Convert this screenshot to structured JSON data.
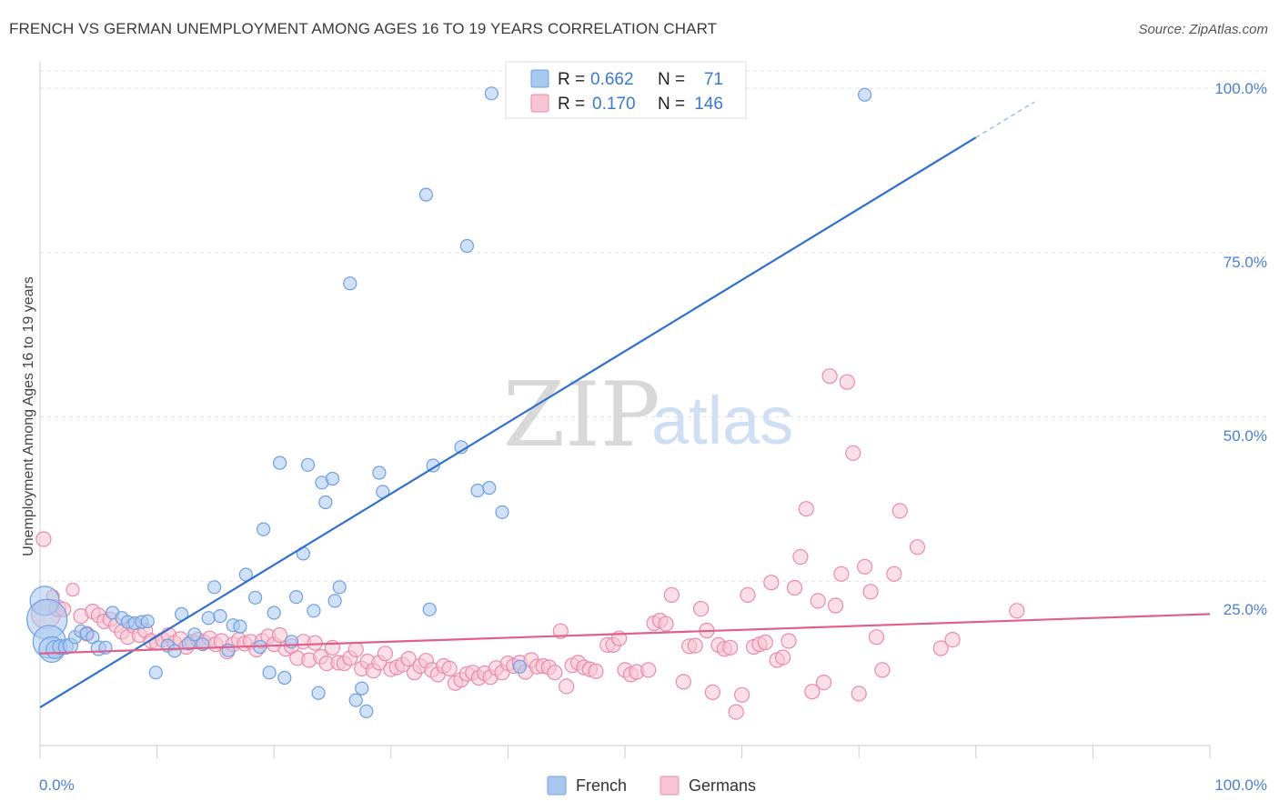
{
  "title": "FRENCH VS GERMAN UNEMPLOYMENT AMONG AGES 16 TO 19 YEARS CORRELATION CHART",
  "source": "Source: ZipAtlas.com",
  "watermark": {
    "zip": "ZIP",
    "atlas": "atlas"
  },
  "colors": {
    "french_fill": "#a9c8f0",
    "french_stroke": "#6f9fe0",
    "french_line": "#2f6fd0",
    "german_fill": "#f7c4d4",
    "german_stroke": "#ea8aaa",
    "german_line": "#e0608a",
    "grid": "#e3e3e3",
    "axis_label": "#4a7fd4"
  },
  "legend": {
    "rows": [
      {
        "r_label": "R =",
        "r_value": "0.662",
        "n_label": "N =",
        "n_value": "71"
      },
      {
        "r_label": "R =",
        "r_value": "0.170",
        "n_label": "N =",
        "n_value": "146"
      }
    ]
  },
  "bottom_legend": {
    "french": "French",
    "germans": "Germans"
  },
  "chart_data": {
    "type": "scatter",
    "title": "FRENCH VS GERMAN UNEMPLOYMENT AMONG AGES 16 TO 19 YEARS CORRELATION CHART",
    "xlabel": "",
    "ylabel": "Unemployment Among Ages 16 to 19 years",
    "xlim": [
      0,
      100
    ],
    "ylim": [
      0,
      100
    ],
    "x_tick_labels": [
      "0.0%",
      "100.0%"
    ],
    "y_tick_labels": [
      "25.0%",
      "50.0%",
      "75.0%",
      "100.0%"
    ],
    "y_ticks": [
      25,
      50,
      75,
      100
    ],
    "grid": true,
    "legend_position": "top-center",
    "series": [
      {
        "name": "French",
        "r": 0.662,
        "n": 71,
        "trend": {
          "x0": 0,
          "y0": 5.8,
          "x1": 80,
          "y1": 92.5,
          "dash_to_x": 85,
          "dash_to_y": 97.9
        },
        "points": [
          [
            0.4,
            22.0,
            16
          ],
          [
            0.6,
            19.2,
            22
          ],
          [
            0.8,
            15.8,
            18
          ],
          [
            1.0,
            14.6,
            14
          ],
          [
            1.3,
            14.6,
            10
          ],
          [
            1.7,
            15.0,
            8
          ],
          [
            2.2,
            15.0,
            8
          ],
          [
            2.6,
            15.2,
            8
          ],
          [
            3.0,
            16.5,
            7
          ],
          [
            3.5,
            17.4,
            7
          ],
          [
            4.0,
            17.0,
            7
          ],
          [
            4.5,
            16.5,
            7
          ],
          [
            5.0,
            14.8,
            8
          ],
          [
            5.6,
            14.9,
            7
          ],
          [
            6.2,
            20.2,
            7
          ],
          [
            7.0,
            19.4,
            7
          ],
          [
            7.5,
            18.8,
            7
          ],
          [
            8.1,
            18.6,
            7
          ],
          [
            8.7,
            18.8,
            7
          ],
          [
            9.2,
            18.9,
            7
          ],
          [
            9.9,
            11.1,
            7
          ],
          [
            10.9,
            15.2,
            7
          ],
          [
            11.5,
            14.4,
            7
          ],
          [
            12.1,
            20.0,
            7
          ],
          [
            12.7,
            15.5,
            7
          ],
          [
            13.2,
            16.9,
            7
          ],
          [
            13.9,
            15.4,
            7
          ],
          [
            14.4,
            19.4,
            7
          ],
          [
            14.9,
            24.1,
            7
          ],
          [
            15.4,
            19.7,
            7
          ],
          [
            16.1,
            14.5,
            7
          ],
          [
            16.5,
            18.3,
            7
          ],
          [
            17.1,
            18.1,
            7
          ],
          [
            17.6,
            26.0,
            7
          ],
          [
            18.4,
            22.5,
            7
          ],
          [
            18.8,
            15.0,
            7
          ],
          [
            19.1,
            32.9,
            7
          ],
          [
            19.6,
            11.1,
            7
          ],
          [
            20.0,
            20.2,
            7
          ],
          [
            20.5,
            43.0,
            7
          ],
          [
            20.9,
            10.3,
            7
          ],
          [
            21.5,
            15.8,
            7
          ],
          [
            21.9,
            22.6,
            7
          ],
          [
            22.5,
            29.2,
            7
          ],
          [
            22.9,
            42.7,
            7
          ],
          [
            23.4,
            20.5,
            7
          ],
          [
            23.8,
            8.0,
            7
          ],
          [
            24.1,
            40.0,
            7
          ],
          [
            24.4,
            37.0,
            7
          ],
          [
            25.0,
            40.6,
            7
          ],
          [
            25.2,
            22.0,
            7
          ],
          [
            25.6,
            24.1,
            7
          ],
          [
            26.5,
            70.3,
            7
          ],
          [
            27.0,
            6.9,
            7
          ],
          [
            27.5,
            8.7,
            7
          ],
          [
            27.9,
            5.2,
            7
          ],
          [
            29.0,
            41.5,
            7
          ],
          [
            29.3,
            38.6,
            7
          ],
          [
            33.0,
            83.8,
            7
          ],
          [
            33.3,
            20.7,
            7
          ],
          [
            33.6,
            42.6,
            7
          ],
          [
            36.0,
            45.4,
            7
          ],
          [
            36.5,
            76.0,
            7
          ],
          [
            37.4,
            38.8,
            7
          ],
          [
            38.4,
            39.2,
            7
          ],
          [
            39.5,
            35.5,
            7
          ],
          [
            38.6,
            99.2,
            7
          ],
          [
            41.0,
            12.0,
            7
          ],
          [
            41.5,
            99.0,
            7
          ],
          [
            70.5,
            99.0,
            7
          ]
        ]
      },
      {
        "name": "Germans",
        "r": 0.17,
        "n": 146,
        "trend": {
          "x0": 0,
          "y0": 14.0,
          "x1": 100,
          "y1": 20.0
        },
        "points": [
          [
            0.3,
            31.4,
            8
          ],
          [
            0.5,
            20.0,
            16
          ],
          [
            1.1,
            22.7,
            7
          ],
          [
            1.5,
            20.9,
            9
          ],
          [
            2.0,
            20.7,
            8
          ],
          [
            2.8,
            23.7,
            7
          ],
          [
            3.5,
            19.7,
            8
          ],
          [
            4.0,
            17.0,
            8
          ],
          [
            4.5,
            20.4,
            8
          ],
          [
            5.0,
            19.8,
            8
          ],
          [
            5.5,
            18.9,
            8
          ],
          [
            6.0,
            19.2,
            8
          ],
          [
            6.5,
            18.3,
            8
          ],
          [
            7.0,
            17.3,
            8
          ],
          [
            7.5,
            16.5,
            8
          ],
          [
            8.0,
            18.2,
            8
          ],
          [
            8.5,
            16.8,
            8
          ],
          [
            9.0,
            17.5,
            8
          ],
          [
            9.5,
            15.9,
            8
          ],
          [
            10.0,
            15.6,
            8
          ],
          [
            10.5,
            16.1,
            8
          ],
          [
            11.0,
            16.8,
            8
          ],
          [
            11.5,
            15.6,
            8
          ],
          [
            12.0,
            16.2,
            8
          ],
          [
            12.5,
            15.0,
            8
          ],
          [
            13.0,
            15.8,
            8
          ],
          [
            13.5,
            16.1,
            8
          ],
          [
            14.0,
            15.7,
            8
          ],
          [
            14.5,
            16.3,
            8
          ],
          [
            15.0,
            15.4,
            8
          ],
          [
            15.5,
            15.9,
            8
          ],
          [
            16.0,
            14.3,
            8
          ],
          [
            16.5,
            15.4,
            8
          ],
          [
            17.0,
            16.1,
            8
          ],
          [
            17.5,
            15.5,
            8
          ],
          [
            18.0,
            15.8,
            8
          ],
          [
            18.5,
            14.6,
            8
          ],
          [
            19.0,
            15.9,
            8
          ],
          [
            19.5,
            16.6,
            8
          ],
          [
            20.0,
            15.4,
            8
          ],
          [
            20.5,
            16.8,
            8
          ],
          [
            21.0,
            14.7,
            8
          ],
          [
            21.5,
            15.1,
            8
          ],
          [
            22.0,
            13.3,
            8
          ],
          [
            22.5,
            15.8,
            8
          ],
          [
            23.0,
            13.0,
            8
          ],
          [
            23.5,
            15.6,
            8
          ],
          [
            24.0,
            13.5,
            8
          ],
          [
            24.5,
            12.5,
            8
          ],
          [
            25.0,
            14.9,
            8
          ],
          [
            25.5,
            12.6,
            8
          ],
          [
            26.0,
            12.5,
            8
          ],
          [
            26.5,
            13.3,
            8
          ],
          [
            27.0,
            14.6,
            8
          ],
          [
            27.5,
            11.7,
            8
          ],
          [
            28.0,
            12.8,
            8
          ],
          [
            28.5,
            11.4,
            8
          ],
          [
            29.0,
            12.6,
            8
          ],
          [
            29.5,
            14.0,
            8
          ],
          [
            30.0,
            11.6,
            8
          ],
          [
            30.5,
            11.9,
            8
          ],
          [
            31.0,
            12.3,
            8
          ],
          [
            31.5,
            13.2,
            8
          ],
          [
            32.0,
            11.1,
            8
          ],
          [
            32.5,
            12.1,
            8
          ],
          [
            33.0,
            12.9,
            8
          ],
          [
            33.5,
            11.5,
            8
          ],
          [
            34.0,
            10.8,
            8
          ],
          [
            34.5,
            12.1,
            8
          ],
          [
            35.0,
            11.7,
            8
          ],
          [
            35.5,
            9.5,
            8
          ],
          [
            36.0,
            10.0,
            8
          ],
          [
            36.5,
            10.9,
            8
          ],
          [
            37.0,
            11.1,
            8
          ],
          [
            37.5,
            10.3,
            8
          ],
          [
            38.0,
            11.0,
            8
          ],
          [
            38.5,
            10.4,
            8
          ],
          [
            39.0,
            11.8,
            8
          ],
          [
            39.5,
            11.1,
            8
          ],
          [
            40.0,
            12.5,
            8
          ],
          [
            40.5,
            12.1,
            8
          ],
          [
            41.0,
            12.6,
            8
          ],
          [
            41.5,
            11.2,
            8
          ],
          [
            42.0,
            13.0,
            8
          ],
          [
            42.5,
            12.0,
            8
          ],
          [
            43.0,
            12.1,
            8
          ],
          [
            43.5,
            11.9,
            8
          ],
          [
            44.0,
            11.1,
            8
          ],
          [
            44.5,
            17.4,
            8
          ],
          [
            45.0,
            9.0,
            8
          ],
          [
            45.5,
            12.2,
            8
          ],
          [
            46.0,
            12.6,
            8
          ],
          [
            46.5,
            11.9,
            8
          ],
          [
            47.0,
            11.6,
            8
          ],
          [
            47.5,
            11.3,
            8
          ],
          [
            48.5,
            15.3,
            8
          ],
          [
            49.0,
            15.3,
            8
          ],
          [
            49.5,
            16.3,
            8
          ],
          [
            50.0,
            11.5,
            8
          ],
          [
            50.5,
            10.8,
            8
          ],
          [
            51.0,
            11.2,
            8
          ],
          [
            52.0,
            11.5,
            8
          ],
          [
            52.5,
            18.6,
            8
          ],
          [
            53.0,
            19.0,
            8
          ],
          [
            53.5,
            18.5,
            8
          ],
          [
            54.0,
            22.9,
            8
          ],
          [
            55.0,
            9.7,
            8
          ],
          [
            55.5,
            15.1,
            8
          ],
          [
            56.0,
            15.2,
            8
          ],
          [
            56.5,
            20.8,
            8
          ],
          [
            57.0,
            17.5,
            8
          ],
          [
            57.5,
            8.1,
            8
          ],
          [
            58.0,
            15.3,
            8
          ],
          [
            58.5,
            14.7,
            8
          ],
          [
            59.0,
            14.9,
            8
          ],
          [
            59.5,
            5.1,
            8
          ],
          [
            60.0,
            7.7,
            8
          ],
          [
            60.5,
            22.9,
            8
          ],
          [
            61.0,
            15.0,
            8
          ],
          [
            61.5,
            15.4,
            8
          ],
          [
            62.0,
            15.7,
            8
          ],
          [
            62.5,
            24.8,
            8
          ],
          [
            63.0,
            13.0,
            8
          ],
          [
            63.5,
            13.4,
            8
          ],
          [
            64.0,
            15.9,
            8
          ],
          [
            64.5,
            24.0,
            8
          ],
          [
            65.0,
            28.7,
            8
          ],
          [
            65.5,
            36.0,
            8
          ],
          [
            66.0,
            8.2,
            8
          ],
          [
            66.5,
            22.0,
            8
          ],
          [
            67.0,
            9.6,
            8
          ],
          [
            67.5,
            56.2,
            8
          ],
          [
            68.0,
            21.3,
            8
          ],
          [
            68.5,
            26.1,
            8
          ],
          [
            69.0,
            55.3,
            8
          ],
          [
            69.5,
            44.5,
            8
          ],
          [
            70.0,
            7.9,
            8
          ],
          [
            70.5,
            27.2,
            8
          ],
          [
            71.0,
            23.4,
            8
          ],
          [
            71.5,
            16.5,
            8
          ],
          [
            72.0,
            11.5,
            8
          ],
          [
            73.0,
            26.1,
            8
          ],
          [
            73.5,
            35.7,
            8
          ],
          [
            75.0,
            30.2,
            8
          ],
          [
            77.0,
            14.8,
            8
          ],
          [
            78.0,
            16.1,
            8
          ],
          [
            83.5,
            20.5,
            8
          ]
        ]
      }
    ]
  }
}
